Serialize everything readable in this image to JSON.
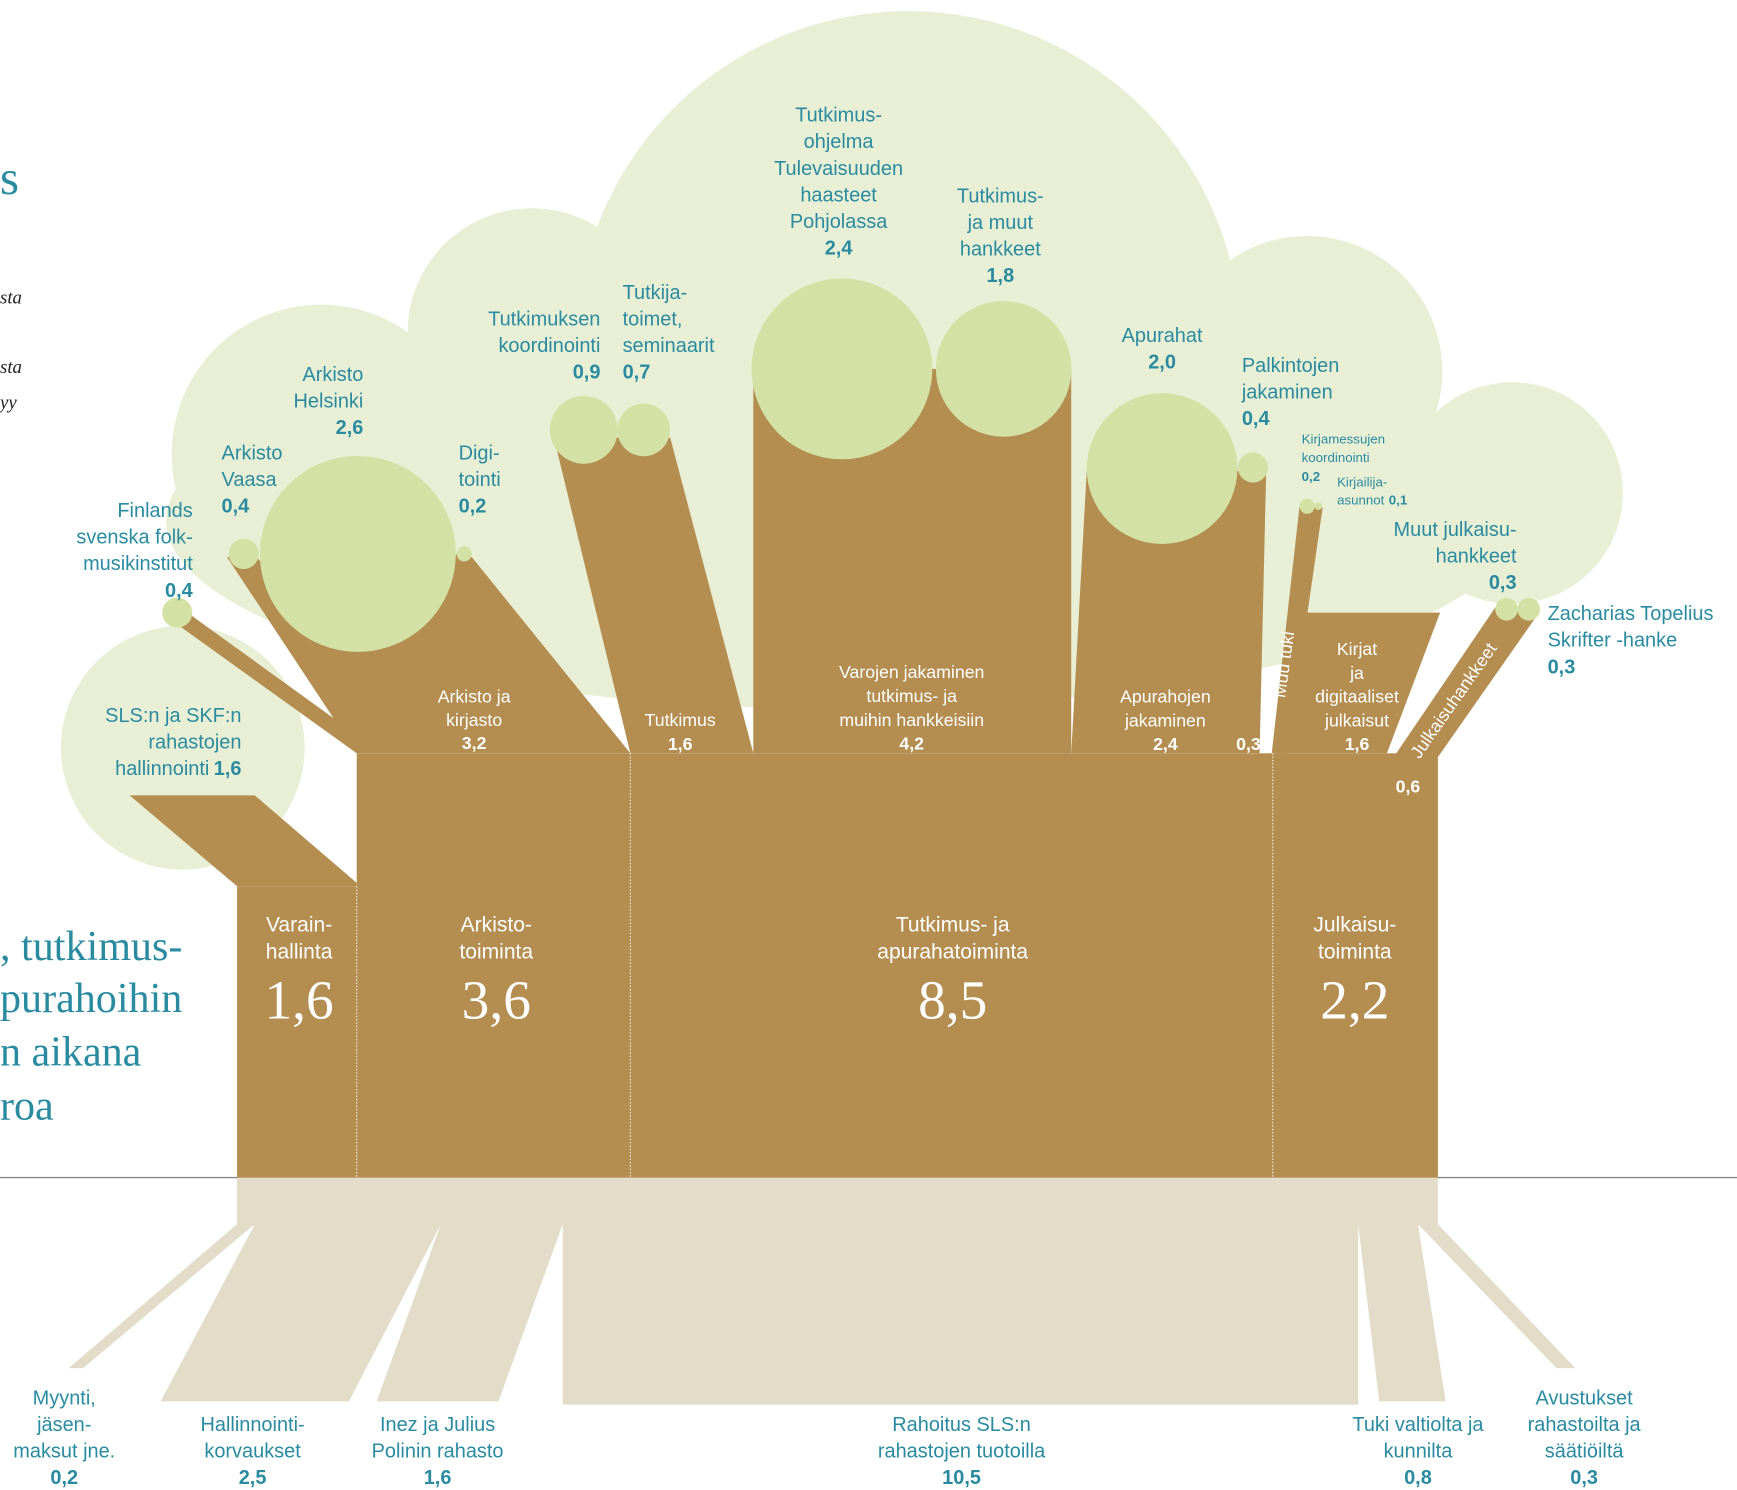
{
  "chart_data": {
    "type": "tree",
    "left_fragments": [
      "s",
      "sta",
      "sta",
      "yy",
      ", tutkimus-",
      "purahoihin",
      "n aikana",
      "roa"
    ],
    "trunks": [
      {
        "lines": [
          "Varain-",
          "hallinta"
        ],
        "amount": {
          "value": 1.6,
          "label": "1,6"
        }
      },
      {
        "lines": [
          "Arkisto-",
          "toiminta"
        ],
        "amount": {
          "value": 3.6,
          "label": "3,6"
        }
      },
      {
        "lines": [
          "Tutkimus- ja",
          "apurahatoiminta"
        ],
        "amount": {
          "value": 8.5,
          "label": "8,5"
        }
      },
      {
        "lines": [
          "Julkaisu-",
          "toiminta"
        ],
        "amount": {
          "value": 2.2,
          "label": "2,2"
        }
      }
    ],
    "branches": [
      {
        "lines": [
          "SLS:n ja SKF:n",
          "rahastojen",
          "hallinnointi"
        ],
        "amount": {
          "value": 1.6,
          "label": "1,6"
        }
      },
      {
        "lines": [
          "Arkisto ja",
          "kirjasto"
        ],
        "amount": {
          "value": 3.2,
          "label": "3,2"
        }
      },
      {
        "lines": [
          "Tutkimus"
        ],
        "amount": {
          "value": 1.6,
          "label": "1,6"
        }
      },
      {
        "lines": [
          "Varojen jakaminen",
          "tutkimus- ja",
          "muihin hankkeisiin"
        ],
        "amount": {
          "value": 4.2,
          "label": "4,2"
        }
      },
      {
        "lines": [
          "Apurahojen",
          "jakaminen"
        ],
        "amount": {
          "value": 2.4,
          "label": "2,4"
        }
      },
      {
        "lines": [
          "Muu tuki"
        ],
        "amount": {
          "value": 0.3,
          "label": "0,3"
        }
      },
      {
        "lines": [
          "Kirjat",
          "ja",
          "digitaaliset",
          "julkaisut"
        ],
        "amount": {
          "value": 1.6,
          "label": "1,6"
        }
      },
      {
        "lines": [
          "Julkaisuhankkeet"
        ],
        "amount": {
          "value": 0.6,
          "label": "0,6"
        }
      }
    ],
    "leaves": [
      {
        "lines": [
          "Finlands",
          "svenska folk-",
          "musikinstitut"
        ],
        "amount": {
          "value": 0.4,
          "label": "0,4"
        }
      },
      {
        "lines": [
          "Arkisto",
          "Vaasa"
        ],
        "amount": {
          "value": 0.4,
          "label": "0,4"
        }
      },
      {
        "lines": [
          "Arkisto",
          "Helsinki"
        ],
        "amount": {
          "value": 2.6,
          "label": "2,6"
        }
      },
      {
        "lines": [
          "Digi-",
          "tointi"
        ],
        "amount": {
          "value": 0.2,
          "label": "0,2"
        }
      },
      {
        "lines": [
          "Tutkimuksen",
          "koordinointi"
        ],
        "amount": {
          "value": 0.9,
          "label": "0,9"
        }
      },
      {
        "lines": [
          "Tutkija-",
          "toimet,",
          "seminaarit"
        ],
        "amount": {
          "value": 0.7,
          "label": "0,7"
        }
      },
      {
        "lines": [
          "Tutkimus-",
          "ohjelma",
          "Tulevaisuuden",
          "haasteet",
          "Pohjolassa"
        ],
        "amount": {
          "value": 2.4,
          "label": "2,4"
        }
      },
      {
        "lines": [
          "Tutkimus-",
          "ja muut",
          "hankkeet"
        ],
        "amount": {
          "value": 1.8,
          "label": "1,8"
        }
      },
      {
        "lines": [
          "Apurahat"
        ],
        "amount": {
          "value": 2.0,
          "label": "2,0"
        }
      },
      {
        "lines": [
          "Palkintojen",
          "jakaminen"
        ],
        "amount": {
          "value": 0.4,
          "label": "0,4"
        }
      },
      {
        "lines": [
          "Kirjamessujen",
          "koordinointi"
        ],
        "amount": {
          "value": 0.2,
          "label": "0,2"
        }
      },
      {
        "lines": [
          "Kirjailija-",
          "asunnot"
        ],
        "amount": {
          "value": 0.1,
          "label": "0,1"
        }
      },
      {
        "lines": [
          "Muut julkaisu-",
          "hankkeet"
        ],
        "amount": {
          "value": 0.3,
          "label": "0,3"
        }
      },
      {
        "lines": [
          "Zacharias Topelius",
          "Skrifter -hanke"
        ],
        "amount": {
          "value": 0.3,
          "label": "0,3"
        }
      }
    ],
    "roots": [
      {
        "lines": [
          "Myynti,",
          "jäsen-",
          "maksut jne."
        ],
        "amount": {
          "value": 0.2,
          "label": "0,2"
        }
      },
      {
        "lines": [
          "Hallinnointi-",
          "korvaukset"
        ],
        "amount": {
          "value": 2.5,
          "label": "2,5"
        }
      },
      {
        "lines": [
          "Inez ja Julius",
          "Polinin rahasto"
        ],
        "amount": {
          "value": 1.6,
          "label": "1,6"
        }
      },
      {
        "lines": [
          "Rahoitus SLS:n",
          "rahastojen tuotoilla"
        ],
        "amount": {
          "value": 10.5,
          "label": "10,5"
        }
      },
      {
        "lines": [
          "Tuki valtiolta ja",
          "kunnilta"
        ],
        "amount": {
          "value": 0.8,
          "label": "0,8"
        }
      },
      {
        "lines": [
          "Avustukset",
          "rahastoilta ja",
          "säätiöiltä"
        ],
        "amount": {
          "value": 0.3,
          "label": "0,3"
        }
      }
    ]
  }
}
